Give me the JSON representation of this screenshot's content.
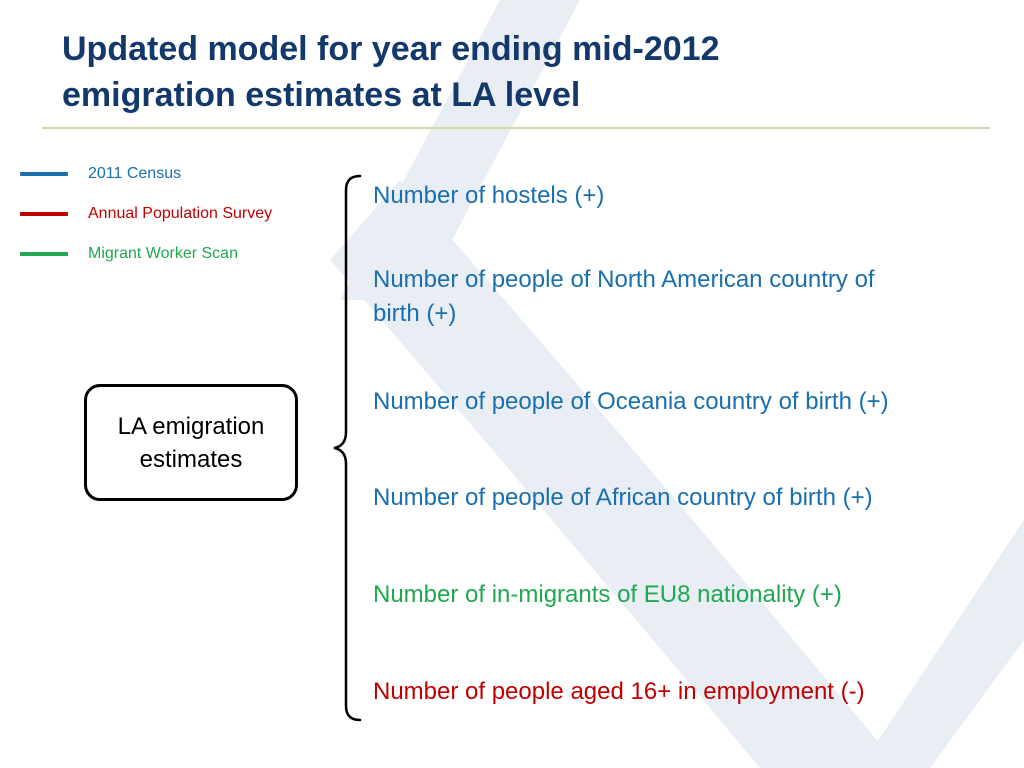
{
  "title_line1": "Updated model for year ending mid-2012",
  "title_line2": "emigration estimates at LA level",
  "colors": {
    "title": "#13386b",
    "census": "#1a6fae",
    "aps": "#c00000",
    "mws": "#1fa84f",
    "watermark": "#e3eaf3"
  },
  "legend": [
    {
      "label": "2011 Census",
      "color": "#1a6fae"
    },
    {
      "label": "Annual Population Survey",
      "color": "#c00000"
    },
    {
      "label": "Migrant Worker Scan",
      "color": "#1fa84f"
    }
  ],
  "node": {
    "line1": "LA emigration",
    "line2": "estimates"
  },
  "factors": [
    {
      "line1": "Number of hostels (+)",
      "line2": "",
      "source": "census",
      "color": "#1a6fae"
    },
    {
      "line1": "Number of people of North American country of",
      "line2": "birth (+)",
      "source": "census",
      "color": "#1a6fae"
    },
    {
      "line1": "Number of people of Oceania country of birth (+)",
      "line2": "",
      "source": "census",
      "color": "#1a6fae"
    },
    {
      "line1": "Number of people of African country of birth (+)",
      "line2": "",
      "source": "census",
      "color": "#1a6fae"
    },
    {
      "line1": "Number of in-migrants of EU8 nationality (+)",
      "line2": "",
      "source": "mws",
      "color": "#1fa84f"
    },
    {
      "line1": "Number of people aged 16+ in employment (-)",
      "line2": "",
      "source": "aps",
      "color": "#c00000"
    }
  ]
}
